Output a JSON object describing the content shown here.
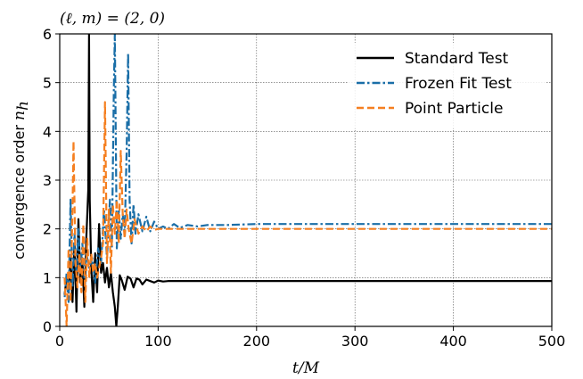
{
  "chart_data": {
    "type": "line",
    "title": "(ℓ, m) = (2, 0)",
    "xlabel": "t/M",
    "ylabel_text": "convergence order ",
    "ylabel_symbol": "n",
    "ylabel_sub": "h",
    "xlim": [
      0,
      500
    ],
    "ylim": [
      0,
      6
    ],
    "xticks": [
      0,
      100,
      200,
      300,
      400,
      500
    ],
    "yticks": [
      0,
      1,
      2,
      3,
      4,
      5,
      6
    ],
    "grid": true,
    "legend_position": "top-right",
    "series": [
      {
        "name": "Standard Test",
        "color": "#000000",
        "dash": "solid",
        "points": [
          [
            5,
            0.65
          ],
          [
            7,
            1.0
          ],
          [
            9,
            0.7
          ],
          [
            11,
            1.4
          ],
          [
            13,
            0.5
          ],
          [
            15,
            1.7
          ],
          [
            17,
            0.3
          ],
          [
            19,
            2.2
          ],
          [
            21,
            0.9
          ],
          [
            23,
            1.4
          ],
          [
            25,
            0.4
          ],
          [
            27,
            1.8
          ],
          [
            29,
            2.8
          ],
          [
            29.8,
            6.0
          ],
          [
            30.5,
            2.6
          ],
          [
            32,
            1.2
          ],
          [
            34,
            0.5
          ],
          [
            36,
            1.5
          ],
          [
            38,
            0.7
          ],
          [
            40,
            2.1
          ],
          [
            42,
            1.1
          ],
          [
            44,
            1.3
          ],
          [
            46,
            0.9
          ],
          [
            48,
            1.2
          ],
          [
            50,
            0.8
          ],
          [
            52,
            1.1
          ],
          [
            54,
            0.7
          ],
          [
            56,
            0.4
          ],
          [
            57.5,
            0.0
          ],
          [
            59,
            0.4
          ],
          [
            61,
            1.05
          ],
          [
            63,
            0.95
          ],
          [
            66,
            0.75
          ],
          [
            69,
            1.02
          ],
          [
            72,
            0.98
          ],
          [
            75,
            0.8
          ],
          [
            78,
            0.98
          ],
          [
            81,
            0.96
          ],
          [
            84,
            0.86
          ],
          [
            88,
            0.96
          ],
          [
            92,
            0.93
          ],
          [
            96,
            0.9
          ],
          [
            100,
            0.94
          ],
          [
            105,
            0.92
          ],
          [
            110,
            0.93
          ],
          [
            130,
            0.93
          ],
          [
            200,
            0.93
          ],
          [
            300,
            0.93
          ],
          [
            400,
            0.93
          ],
          [
            500,
            0.93
          ]
        ]
      },
      {
        "name": "Frozen Fit Test",
        "color": "#1a6ea7",
        "dash": "dashdot",
        "points": [
          [
            5,
            0.6
          ],
          [
            7,
            1.1
          ],
          [
            9,
            0.5
          ],
          [
            11,
            2.6
          ],
          [
            13,
            0.8
          ],
          [
            15,
            1.9
          ],
          [
            17,
            1.1
          ],
          [
            19,
            2.0
          ],
          [
            21,
            1.1
          ],
          [
            23,
            1.7
          ],
          [
            25,
            1.0
          ],
          [
            27,
            1.5
          ],
          [
            30,
            1.2
          ],
          [
            33,
            1.4
          ],
          [
            36,
            0.9
          ],
          [
            39,
            1.6
          ],
          [
            42,
            1.3
          ],
          [
            45,
            2.4
          ],
          [
            48,
            1.4
          ],
          [
            51,
            2.6
          ],
          [
            53,
            1.6
          ],
          [
            55,
            4.9
          ],
          [
            56,
            6.0
          ],
          [
            58,
            1.6
          ],
          [
            60,
            2.4
          ],
          [
            62,
            1.8
          ],
          [
            64,
            2.3
          ],
          [
            66,
            1.9
          ],
          [
            68,
            3.6
          ],
          [
            69.5,
            5.6
          ],
          [
            71,
            2.6
          ],
          [
            73,
            1.7
          ],
          [
            75,
            2.5
          ],
          [
            77,
            1.9
          ],
          [
            80,
            2.3
          ],
          [
            84,
            1.95
          ],
          [
            88,
            2.25
          ],
          [
            92,
            1.95
          ],
          [
            96,
            2.15
          ],
          [
            100,
            2.0
          ],
          [
            105,
            2.05
          ],
          [
            110,
            2.0
          ],
          [
            116,
            2.1
          ],
          [
            122,
            2.02
          ],
          [
            130,
            2.08
          ],
          [
            140,
            2.05
          ],
          [
            150,
            2.08
          ],
          [
            170,
            2.08
          ],
          [
            200,
            2.1
          ],
          [
            250,
            2.1
          ],
          [
            300,
            2.1
          ],
          [
            400,
            2.1
          ],
          [
            500,
            2.1
          ]
        ]
      },
      {
        "name": "Point Particle",
        "color": "#f57f20",
        "dash": "dashed",
        "points": [
          [
            5,
            1.0
          ],
          [
            7,
            0.0
          ],
          [
            9,
            1.6
          ],
          [
            11,
            0.5
          ],
          [
            13,
            2.4
          ],
          [
            14,
            3.8
          ],
          [
            16,
            1.3
          ],
          [
            18,
            0.8
          ],
          [
            20,
            1.5
          ],
          [
            22,
            0.7
          ],
          [
            24,
            2.1
          ],
          [
            26,
            0.5
          ],
          [
            28,
            1.8
          ],
          [
            30,
            1.0
          ],
          [
            32,
            1.5
          ],
          [
            34,
            1.1
          ],
          [
            36,
            1.3
          ],
          [
            38,
            1.0
          ],
          [
            40,
            1.2
          ],
          [
            42,
            1.4
          ],
          [
            44,
            1.7
          ],
          [
            46,
            4.6
          ],
          [
            48,
            1.3
          ],
          [
            50,
            2.4
          ],
          [
            52,
            1.1
          ],
          [
            54,
            2.5
          ],
          [
            56,
            1.9
          ],
          [
            58,
            2.6
          ],
          [
            60,
            1.7
          ],
          [
            62,
            3.6
          ],
          [
            64,
            2.3
          ],
          [
            66,
            1.8
          ],
          [
            68,
            2.4
          ],
          [
            70,
            2.0
          ],
          [
            73,
            1.7
          ],
          [
            76,
            2.2
          ],
          [
            80,
            1.9
          ],
          [
            84,
            2.05
          ],
          [
            88,
            1.95
          ],
          [
            92,
            2.05
          ],
          [
            96,
            1.98
          ],
          [
            100,
            2.0
          ],
          [
            110,
            2.0
          ],
          [
            150,
            2.0
          ],
          [
            200,
            2.0
          ],
          [
            300,
            2.0
          ],
          [
            400,
            2.0
          ],
          [
            500,
            2.0
          ]
        ]
      }
    ]
  }
}
